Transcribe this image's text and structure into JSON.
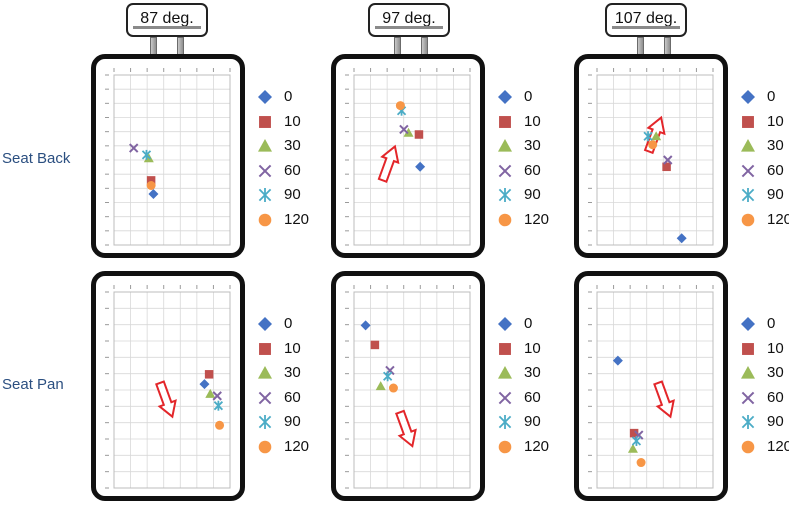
{
  "row_labels": [
    "Seat Back",
    "Seat Pan"
  ],
  "column_labels": [
    "87 deg.",
    "97 deg.",
    "107 deg."
  ],
  "legend": {
    "entries": [
      {
        "label": "0",
        "marker": "diamond",
        "color": "#4472C4"
      },
      {
        "label": "10",
        "marker": "square",
        "color": "#C0504D"
      },
      {
        "label": "30",
        "marker": "triangle",
        "color": "#9BBB59"
      },
      {
        "label": "60",
        "marker": "x",
        "color": "#8064A2"
      },
      {
        "label": "90",
        "marker": "asterisk",
        "color": "#4BACC6"
      },
      {
        "label": "120",
        "marker": "circle",
        "color": "#F79646"
      }
    ]
  },
  "chart_data": [
    {
      "type": "scatter",
      "panel": "Seat Back 87 deg.",
      "xlim": [
        0,
        1
      ],
      "ylim": [
        0,
        1
      ],
      "arrow": "none",
      "series": [
        {
          "name": "0",
          "x": [
            0.34
          ],
          "y": [
            0.3
          ]
        },
        {
          "name": "10",
          "x": [
            0.32
          ],
          "y": [
            0.38
          ]
        },
        {
          "name": "30",
          "x": [
            0.3
          ],
          "y": [
            0.51
          ]
        },
        {
          "name": "60",
          "x": [
            0.17
          ],
          "y": [
            0.57
          ]
        },
        {
          "name": "90",
          "x": [
            0.28
          ],
          "y": [
            0.53
          ]
        },
        {
          "name": "120",
          "x": [
            0.32
          ],
          "y": [
            0.35
          ]
        }
      ]
    },
    {
      "type": "scatter",
      "panel": "Seat Back 97 deg.",
      "xlim": [
        0,
        1
      ],
      "ylim": [
        0,
        1
      ],
      "arrow": "up",
      "series": [
        {
          "name": "0",
          "x": [
            0.57
          ],
          "y": [
            0.46
          ]
        },
        {
          "name": "10",
          "x": [
            0.56
          ],
          "y": [
            0.65
          ]
        },
        {
          "name": "30",
          "x": [
            0.47
          ],
          "y": [
            0.66
          ]
        },
        {
          "name": "60",
          "x": [
            0.43
          ],
          "y": [
            0.68
          ]
        },
        {
          "name": "90",
          "x": [
            0.41
          ],
          "y": [
            0.79
          ]
        },
        {
          "name": "120",
          "x": [
            0.4
          ],
          "y": [
            0.82
          ]
        }
      ]
    },
    {
      "type": "scatter",
      "panel": "Seat Back 107 deg.",
      "xlim": [
        0,
        1
      ],
      "ylim": [
        0,
        1
      ],
      "arrow": "up",
      "series": [
        {
          "name": "0",
          "x": [
            0.73
          ],
          "y": [
            0.04
          ]
        },
        {
          "name": "10",
          "x": [
            0.6
          ],
          "y": [
            0.46
          ]
        },
        {
          "name": "30",
          "x": [
            0.51
          ],
          "y": [
            0.64
          ]
        },
        {
          "name": "60",
          "x": [
            0.61
          ],
          "y": [
            0.5
          ]
        },
        {
          "name": "90",
          "x": [
            0.44
          ],
          "y": [
            0.64
          ]
        },
        {
          "name": "120",
          "x": [
            0.48
          ],
          "y": [
            0.59
          ]
        }
      ]
    },
    {
      "type": "scatter",
      "panel": "Seat Pan 87 deg.",
      "xlim": [
        0,
        1
      ],
      "ylim": [
        0,
        1
      ],
      "arrow": "down",
      "series": [
        {
          "name": "0",
          "x": [
            0.78
          ],
          "y": [
            0.53
          ]
        },
        {
          "name": "10",
          "x": [
            0.82
          ],
          "y": [
            0.58
          ]
        },
        {
          "name": "30",
          "x": [
            0.83
          ],
          "y": [
            0.48
          ]
        },
        {
          "name": "60",
          "x": [
            0.89
          ],
          "y": [
            0.47
          ]
        },
        {
          "name": "90",
          "x": [
            0.9
          ],
          "y": [
            0.42
          ]
        },
        {
          "name": "120",
          "x": [
            0.91
          ],
          "y": [
            0.32
          ]
        }
      ]
    },
    {
      "type": "scatter",
      "panel": "Seat Pan 97 deg.",
      "xlim": [
        0,
        1
      ],
      "ylim": [
        0,
        1
      ],
      "arrow": "down",
      "series": [
        {
          "name": "0",
          "x": [
            0.1
          ],
          "y": [
            0.83
          ]
        },
        {
          "name": "10",
          "x": [
            0.18
          ],
          "y": [
            0.73
          ]
        },
        {
          "name": "30",
          "x": [
            0.23
          ],
          "y": [
            0.52
          ]
        },
        {
          "name": "60",
          "x": [
            0.31
          ],
          "y": [
            0.6
          ]
        },
        {
          "name": "90",
          "x": [
            0.29
          ],
          "y": [
            0.57
          ]
        },
        {
          "name": "120",
          "x": [
            0.34
          ],
          "y": [
            0.51
          ]
        }
      ]
    },
    {
      "type": "scatter",
      "panel": "Seat Pan 107 deg.",
      "xlim": [
        0,
        1
      ],
      "ylim": [
        0,
        1
      ],
      "arrow": "down",
      "series": [
        {
          "name": "0",
          "x": [
            0.18
          ],
          "y": [
            0.65
          ]
        },
        {
          "name": "10",
          "x": [
            0.32
          ],
          "y": [
            0.28
          ]
        },
        {
          "name": "30",
          "x": [
            0.31
          ],
          "y": [
            0.2
          ]
        },
        {
          "name": "60",
          "x": [
            0.36
          ],
          "y": [
            0.27
          ]
        },
        {
          "name": "90",
          "x": [
            0.34
          ],
          "y": [
            0.24
          ]
        },
        {
          "name": "120",
          "x": [
            0.38
          ],
          "y": [
            0.13
          ]
        }
      ]
    }
  ]
}
